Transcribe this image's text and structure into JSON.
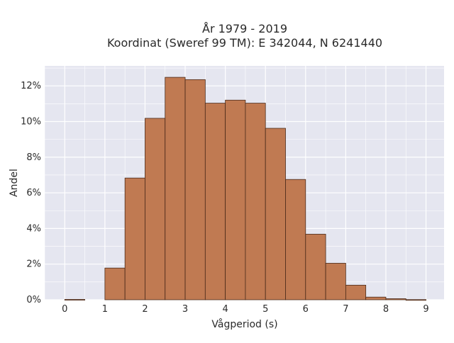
{
  "chart_data": {
    "type": "bar",
    "title_line1": "År 1979 - 2019",
    "title_line2": "Koordinat (Sweref 99 TM): E 342044, N 6241440",
    "xlabel": "Vågperiod (s)",
    "ylabel": "Andel",
    "bin_width": 0.5,
    "bins": [
      0,
      0.5,
      1,
      1.5,
      2,
      2.5,
      3,
      3.5,
      4,
      4.5,
      5,
      5.5,
      6,
      6.5,
      7,
      7.5,
      8,
      8.5
    ],
    "values": [
      0.0002,
      0,
      0.0178,
      0.0683,
      0.1018,
      0.1248,
      0.1235,
      0.1103,
      0.112,
      0.1103,
      0.0962,
      0.0675,
      0.0368,
      0.0205,
      0.0082,
      0.0015,
      0.0006,
      0.0001
    ],
    "xlim": [
      -0.5,
      9.45
    ],
    "ylim": [
      0,
      0.1312
    ],
    "xticks": [
      0,
      1,
      2,
      3,
      4,
      5,
      6,
      7,
      8,
      9
    ],
    "xtick_labels": [
      "0",
      "1",
      "2",
      "3",
      "4",
      "5",
      "6",
      "7",
      "8",
      "9"
    ],
    "yticks": [
      0,
      0.02,
      0.04,
      0.06,
      0.08,
      0.1,
      0.12
    ],
    "ytick_labels": [
      "0%",
      "2%",
      "4%",
      "6%",
      "8%",
      "10%",
      "12%"
    ],
    "grid": true,
    "colors": {
      "bar_fill": "#c07a52",
      "bar_edge": "#4a2a1a",
      "plot_bg": "#e5e6f0",
      "grid": "#ffffff"
    }
  }
}
